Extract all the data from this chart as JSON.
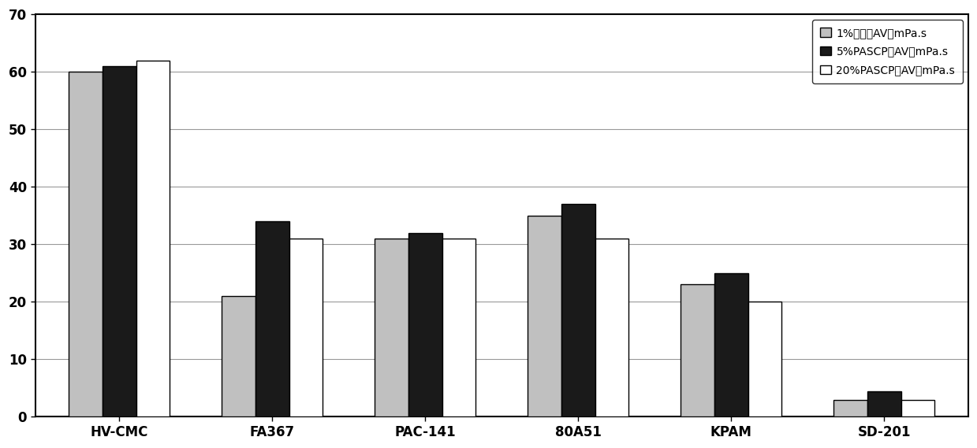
{
  "categories": [
    "HV-CMC",
    "FA367",
    "PAC-141",
    "80A51",
    "KPAM",
    "SD-201"
  ],
  "series": [
    {
      "label": "1%的溢液AV，mPa.s",
      "values": [
        60,
        21,
        31,
        35,
        23,
        3
      ],
      "color": "#c0c0c0",
      "edgecolor": "#000000"
    },
    {
      "label": "5%PASCP的AV，mPa.s",
      "values": [
        61,
        34,
        32,
        37,
        25,
        4.5
      ],
      "color": "#1a1a1a",
      "edgecolor": "#000000"
    },
    {
      "label": "20%PASCP的AV，mPa.s",
      "values": [
        62,
        31,
        31,
        31,
        20,
        3
      ],
      "color": "#ffffff",
      "edgecolor": "#000000"
    }
  ],
  "ylim": [
    0,
    70
  ],
  "yticks": [
    0,
    10,
    20,
    30,
    40,
    50,
    60,
    70
  ],
  "bar_width": 0.22,
  "background_color": "#ffffff",
  "plot_background": "#ffffff",
  "legend_fontsize": 10,
  "tick_fontsize": 12,
  "grid_color": "#999999",
  "border_color": "#000000"
}
